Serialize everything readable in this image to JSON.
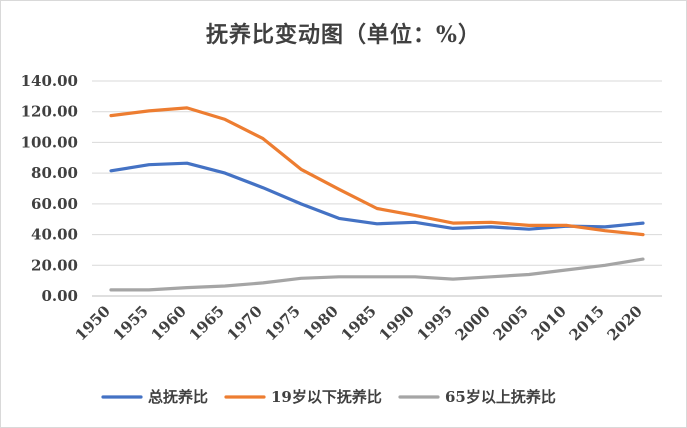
{
  "chart_data": {
    "type": "line",
    "title": "抚养比变动图（单位：%）",
    "xlabel": "",
    "ylabel": "",
    "x": [
      "1950",
      "1955",
      "1960",
      "1965",
      "1970",
      "1975",
      "1980",
      "1985",
      "1990",
      "1995",
      "2000",
      "2005",
      "2010",
      "2015",
      "2020"
    ],
    "ylim": [
      0,
      140
    ],
    "yticks": [
      "0.00",
      "20.00",
      "40.00",
      "60.00",
      "80.00",
      "100.00",
      "120.00",
      "140.00"
    ],
    "grid": true,
    "legend_position": "bottom",
    "series": [
      {
        "name": "总抚养比",
        "color": "#4472c4",
        "values": [
          81.5,
          85.5,
          86.5,
          80.0,
          70.5,
          60.0,
          50.5,
          47.0,
          48.0,
          44.0,
          45.0,
          43.5,
          45.5,
          45.0,
          47.5
        ]
      },
      {
        "name": "19岁以下抚养比",
        "color": "#ed7d31",
        "values": [
          117.5,
          120.5,
          122.5,
          115.0,
          102.5,
          82.5,
          69.5,
          57.0,
          52.5,
          47.5,
          48.0,
          46.0,
          46.0,
          42.5,
          40.0
        ]
      },
      {
        "name": "65岁以上抚养比",
        "color": "#a5a5a5",
        "values": [
          4.0,
          4.0,
          5.5,
          6.5,
          8.5,
          11.5,
          12.5,
          12.5,
          12.5,
          11.0,
          12.5,
          14.0,
          17.0,
          20.0,
          24.0
        ]
      }
    ]
  }
}
